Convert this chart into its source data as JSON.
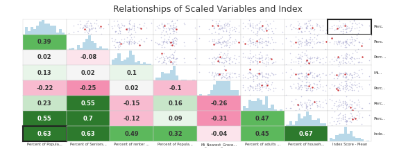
{
  "title": "Relationships of Scaled Variables and Index",
  "title_fontsize": 9,
  "col_labels": [
    "Percent of Popula...",
    "Percent of Seniors...",
    "Percent of renter ...",
    "Percent of Popula...",
    "Mi_Nearest_Groce...",
    "Percent of adults ...",
    "Percent of househ...",
    "Index Score - Mean"
  ],
  "row_labels": [
    "Perc.",
    "Perc.",
    "Perc...",
    "Mi...",
    "Perc..",
    "Perc..",
    "Perc..",
    "Inde.."
  ],
  "n": 8,
  "correlations": [
    [
      null,
      null,
      null,
      null,
      null,
      null,
      null,
      null
    ],
    [
      0.39,
      null,
      null,
      null,
      null,
      null,
      null,
      null
    ],
    [
      0.02,
      -0.08,
      null,
      null,
      null,
      null,
      null,
      null
    ],
    [
      0.13,
      0.02,
      0.1,
      null,
      null,
      null,
      null,
      null
    ],
    [
      -0.22,
      -0.25,
      0.02,
      -0.1,
      null,
      null,
      null,
      null
    ],
    [
      0.23,
      0.55,
      -0.15,
      0.16,
      -0.26,
      null,
      null,
      null
    ],
    [
      0.55,
      0.7,
      -0.12,
      0.09,
      -0.31,
      0.47,
      null,
      null
    ],
    [
      0.63,
      0.63,
      0.49,
      0.32,
      -0.04,
      0.45,
      0.67,
      null
    ]
  ],
  "scatter_color": "#9898c8",
  "scatter_highlight": "#cc2222",
  "hist_color": "#b8d8e8",
  "cell_border_color": "#d0d0d0",
  "bg_color": "#ffffff",
  "corr_fontsize": 6,
  "color_map": {
    "strong_pos": "#2d7a2d",
    "mid_pos": "#5cb85c",
    "light_pos": "#c8e6c9",
    "neutral_pos": "#e8f5e9",
    "neutral": "#f5f5f5",
    "neutral_neg": "#fce4ec",
    "light_neg": "#f8bbd0",
    "mid_neg": "#f48fb1",
    "strong_neg": "#e91e63"
  }
}
